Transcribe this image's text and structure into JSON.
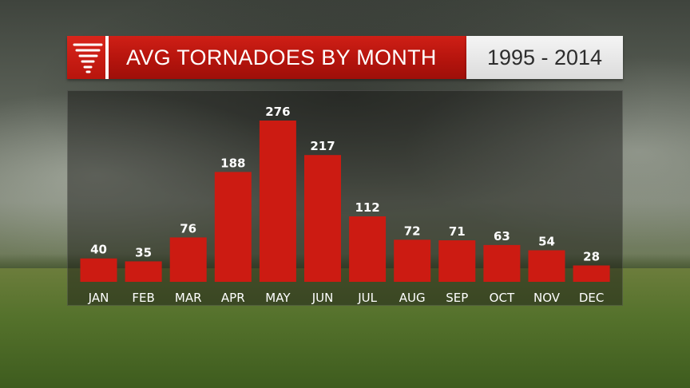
{
  "header": {
    "title": "AVG TORNADOES BY MONTH",
    "date_range": "1995 - 2014",
    "logo_icon": "tornado-icon"
  },
  "chart_data": {
    "type": "bar",
    "title": "AVG TORNADOES BY MONTH",
    "subtitle": "1995 - 2014",
    "categories": [
      "JAN",
      "FEB",
      "MAR",
      "APR",
      "MAY",
      "JUN",
      "JUL",
      "AUG",
      "SEP",
      "OCT",
      "NOV",
      "DEC"
    ],
    "values": [
      40,
      35,
      76,
      188,
      276,
      217,
      112,
      72,
      71,
      63,
      54,
      28
    ],
    "xlabel": "",
    "ylabel": "",
    "ylim": [
      0,
      276
    ],
    "grid": false,
    "legend": "none",
    "bar_color": "#cc1b12"
  }
}
